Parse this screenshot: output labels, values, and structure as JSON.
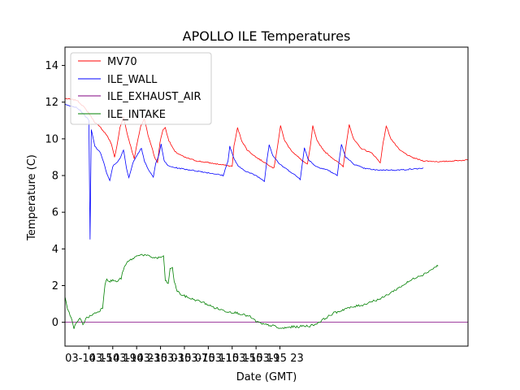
{
  "chart_data": {
    "type": "line",
    "title": "APOLLO ILE Temperatures",
    "xlabel": "Date (GMT)",
    "ylabel": "Temperature (C)",
    "xlim": [
      -4,
      63.5
    ],
    "ylim": [
      -1.3,
      15
    ],
    "x_unit": "hours since 03-14 15:00",
    "x_ticks": [
      {
        "label": "03-14 15",
        "value": 0
      },
      {
        "label": "03-14 19",
        "value": 4
      },
      {
        "label": "03-14 23",
        "value": 8
      },
      {
        "label": "03-15 03",
        "value": 12
      },
      {
        "label": "03-15 07",
        "value": 16
      },
      {
        "label": "03-15 11",
        "value": 20
      },
      {
        "label": "03-15 15",
        "value": 24
      },
      {
        "label": "03-15 19",
        "value": 28
      },
      {
        "label": "03-15 23",
        "value": 32
      }
    ],
    "y_ticks": [
      0,
      2,
      4,
      6,
      8,
      10,
      12,
      14
    ],
    "legend_position": "upper-left",
    "series": [
      {
        "name": "MV70",
        "color": "#ff0000",
        "points": [
          [
            -4,
            12.2
          ],
          [
            -2,
            12.1
          ],
          [
            -1,
            11.8
          ],
          [
            0,
            11.4
          ],
          [
            1,
            10.9
          ],
          [
            2,
            10.6
          ],
          [
            3,
            10.2
          ],
          [
            3.8,
            9.7
          ],
          [
            4.3,
            9.0
          ],
          [
            4.7,
            9.6
          ],
          [
            5.2,
            10.6
          ],
          [
            5.8,
            11.2
          ],
          [
            6.4,
            10.3
          ],
          [
            7.0,
            9.6
          ],
          [
            7.6,
            8.9
          ],
          [
            8.1,
            9.8
          ],
          [
            8.7,
            10.7
          ],
          [
            9.3,
            11.1
          ],
          [
            9.9,
            10.2
          ],
          [
            10.5,
            9.6
          ],
          [
            11.0,
            9.0
          ],
          [
            11.5,
            8.7
          ],
          [
            11.9,
            9.8
          ],
          [
            12.4,
            10.5
          ],
          [
            12.8,
            10.6
          ],
          [
            13.4,
            9.9
          ],
          [
            14.4,
            9.3
          ],
          [
            16.0,
            9.0
          ],
          [
            18.0,
            8.8
          ],
          [
            20.0,
            8.7
          ],
          [
            22.0,
            8.6
          ],
          [
            24.0,
            8.5
          ],
          [
            24.3,
            9.6
          ],
          [
            24.9,
            10.6
          ],
          [
            25.6,
            9.9
          ],
          [
            26.5,
            9.4
          ],
          [
            28.0,
            9.0
          ],
          [
            29.5,
            8.7
          ],
          [
            31.0,
            8.4
          ],
          [
            31.6,
            9.6
          ],
          [
            32.1,
            10.7
          ],
          [
            32.8,
            9.9
          ],
          [
            33.8,
            9.4
          ],
          [
            35.4,
            8.9
          ],
          [
            36.6,
            8.6
          ],
          [
            37.1,
            9.6
          ],
          [
            37.5,
            10.7
          ],
          [
            38.2,
            9.9
          ],
          [
            39.5,
            9.3
          ],
          [
            41.0,
            8.9
          ],
          [
            42.6,
            8.5
          ],
          [
            43.1,
            9.7
          ],
          [
            43.6,
            10.8
          ],
          [
            44.3,
            10.0
          ],
          [
            45.5,
            9.5
          ],
          [
            47.5,
            9.2
          ],
          [
            48.8,
            8.7
          ],
          [
            49.3,
            9.8
          ],
          [
            49.8,
            10.7
          ],
          [
            50.6,
            10.0
          ],
          [
            52.0,
            9.4
          ],
          [
            54.0,
            9.0
          ],
          [
            56.0,
            8.8
          ],
          [
            59.0,
            8.75
          ],
          [
            61.0,
            8.8
          ],
          [
            63.5,
            8.85
          ]
        ]
      },
      {
        "name": "ILE_WALL",
        "color": "#0000ff",
        "points": [
          [
            -4,
            11.9
          ],
          [
            -2,
            11.7
          ],
          [
            -1,
            11.4
          ],
          [
            0,
            11.0
          ],
          [
            0.2,
            4.5
          ],
          [
            0.4,
            10.5
          ],
          [
            1,
            9.6
          ],
          [
            2,
            9.2
          ],
          [
            2.5,
            8.7
          ],
          [
            3.0,
            8.1
          ],
          [
            3.5,
            7.7
          ],
          [
            4.0,
            8.5
          ],
          [
            5.2,
            8.9
          ],
          [
            5.8,
            9.4
          ],
          [
            6.3,
            8.4
          ],
          [
            6.7,
            7.9
          ],
          [
            7.5,
            8.8
          ],
          [
            8.2,
            9.2
          ],
          [
            8.8,
            9.5
          ],
          [
            9.3,
            8.8
          ],
          [
            9.8,
            8.4
          ],
          [
            10.4,
            8.1
          ],
          [
            10.8,
            7.9
          ],
          [
            11.2,
            8.7
          ],
          [
            11.7,
            9.1
          ],
          [
            12.1,
            9.7
          ],
          [
            12.6,
            8.8
          ],
          [
            13.4,
            8.5
          ],
          [
            15.0,
            8.4
          ],
          [
            17.0,
            8.3
          ],
          [
            19.0,
            8.2
          ],
          [
            21.0,
            8.1
          ],
          [
            22.5,
            8.0
          ],
          [
            23.3,
            8.8
          ],
          [
            23.6,
            9.6
          ],
          [
            24.2,
            9.0
          ],
          [
            25.0,
            8.5
          ],
          [
            26.5,
            8.2
          ],
          [
            28.0,
            8.0
          ],
          [
            29.4,
            7.7
          ],
          [
            29.8,
            8.8
          ],
          [
            30.2,
            9.7
          ],
          [
            30.8,
            9.1
          ],
          [
            32.0,
            8.6
          ],
          [
            33.8,
            8.2
          ],
          [
            35.4,
            7.8
          ],
          [
            35.8,
            8.8
          ],
          [
            36.1,
            9.5
          ],
          [
            36.7,
            8.9
          ],
          [
            38.0,
            8.5
          ],
          [
            40.0,
            8.3
          ],
          [
            41.6,
            8.0
          ],
          [
            42.0,
            9.0
          ],
          [
            42.3,
            9.7
          ],
          [
            43.0,
            9.0
          ],
          [
            44.5,
            8.6
          ],
          [
            46.0,
            8.4
          ],
          [
            48.0,
            8.3
          ],
          [
            50.0,
            8.3
          ],
          [
            52.0,
            8.3
          ],
          [
            54.0,
            8.35
          ],
          [
            56.0,
            8.4
          ]
        ]
      },
      {
        "name": "ILE_EXHAUST_AIR",
        "color": "#800080",
        "points": [
          [
            -4,
            0.0
          ],
          [
            63.5,
            0.0
          ]
        ]
      },
      {
        "name": "ILE_INTAKE",
        "color": "#008000",
        "points": [
          [
            -4,
            1.4
          ],
          [
            -3.6,
            0.7
          ],
          [
            -3.0,
            0.3
          ],
          [
            -2.5,
            -0.3
          ],
          [
            -2.0,
            0.0
          ],
          [
            -1.5,
            0.2
          ],
          [
            -1.0,
            -0.1
          ],
          [
            -0.5,
            0.2
          ],
          [
            0,
            0.3
          ],
          [
            1,
            0.5
          ],
          [
            1.7,
            0.6
          ],
          [
            2.3,
            0.8
          ],
          [
            2.7,
            2.1
          ],
          [
            3.0,
            2.4
          ],
          [
            3.4,
            2.2
          ],
          [
            4.0,
            2.3
          ],
          [
            4.6,
            2.2
          ],
          [
            5.4,
            2.4
          ],
          [
            5.8,
            2.9
          ],
          [
            6.5,
            3.3
          ],
          [
            7.5,
            3.5
          ],
          [
            8.5,
            3.7
          ],
          [
            9.5,
            3.65
          ],
          [
            10.5,
            3.55
          ],
          [
            11.5,
            3.5
          ],
          [
            12.5,
            3.6
          ],
          [
            12.8,
            2.3
          ],
          [
            13.3,
            2.1
          ],
          [
            13.6,
            2.9
          ],
          [
            14.0,
            3.0
          ],
          [
            14.3,
            2.2
          ],
          [
            14.8,
            1.7
          ],
          [
            15.5,
            1.5
          ],
          [
            17,
            1.3
          ],
          [
            19,
            1.1
          ],
          [
            21,
            0.8
          ],
          [
            23,
            0.6
          ],
          [
            25,
            0.5
          ],
          [
            27,
            0.3
          ],
          [
            28,
            0.05
          ],
          [
            29,
            -0.1
          ],
          [
            30,
            -0.15
          ],
          [
            31,
            -0.2
          ],
          [
            32,
            -0.35
          ],
          [
            33,
            -0.3
          ],
          [
            34,
            -0.25
          ],
          [
            35,
            -0.25
          ],
          [
            36,
            -0.2
          ],
          [
            37,
            -0.2
          ],
          [
            38,
            -0.1
          ],
          [
            39,
            0.1
          ],
          [
            40,
            0.3
          ],
          [
            41,
            0.5
          ],
          [
            42,
            0.6
          ],
          [
            43,
            0.75
          ],
          [
            44,
            0.8
          ],
          [
            45,
            0.9
          ],
          [
            46,
            0.95
          ],
          [
            47,
            1.1
          ],
          [
            48,
            1.2
          ],
          [
            49,
            1.3
          ],
          [
            50,
            1.5
          ],
          [
            51,
            1.7
          ],
          [
            52,
            1.9
          ],
          [
            53,
            2.1
          ],
          [
            54,
            2.3
          ],
          [
            55,
            2.5
          ],
          [
            56,
            2.6
          ],
          [
            57,
            2.8
          ],
          [
            58,
            3.0
          ],
          [
            58.5,
            3.1
          ]
        ]
      }
    ]
  }
}
